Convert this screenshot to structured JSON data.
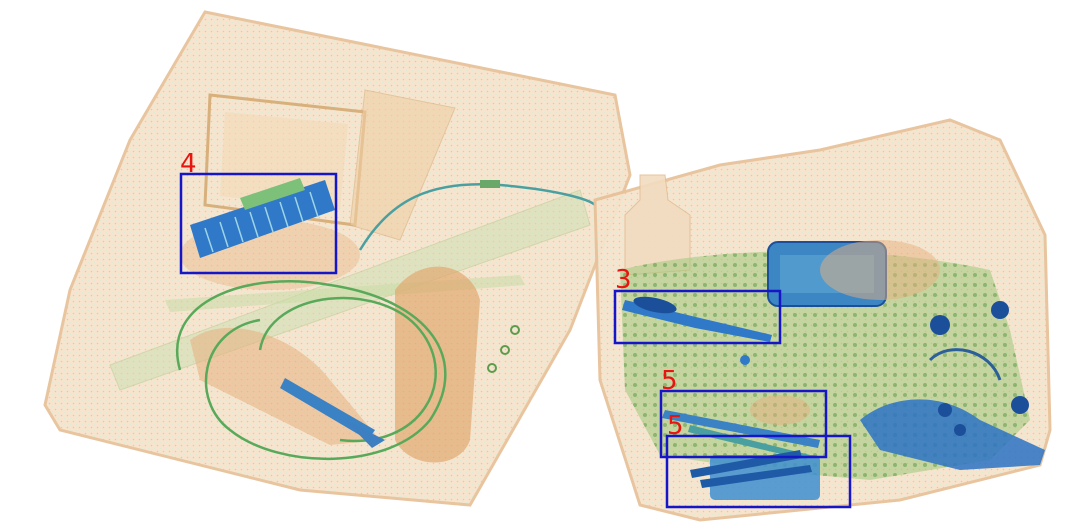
{
  "image": {
    "type": "xray-baggage-scan",
    "background": "#ffffff"
  },
  "palette": {
    "organic": "#e9b98a",
    "organic_dark": "#d8925a",
    "mixed": "#6fb86a",
    "metal": "#2f79c8",
    "metal_dark": "#1c4f9a",
    "box_stroke": "#1616c8",
    "label_color": "#e8140f"
  },
  "detections": [
    {
      "label": "4"
    },
    {
      "label": "3"
    },
    {
      "label": "5"
    },
    {
      "label": "5"
    }
  ]
}
